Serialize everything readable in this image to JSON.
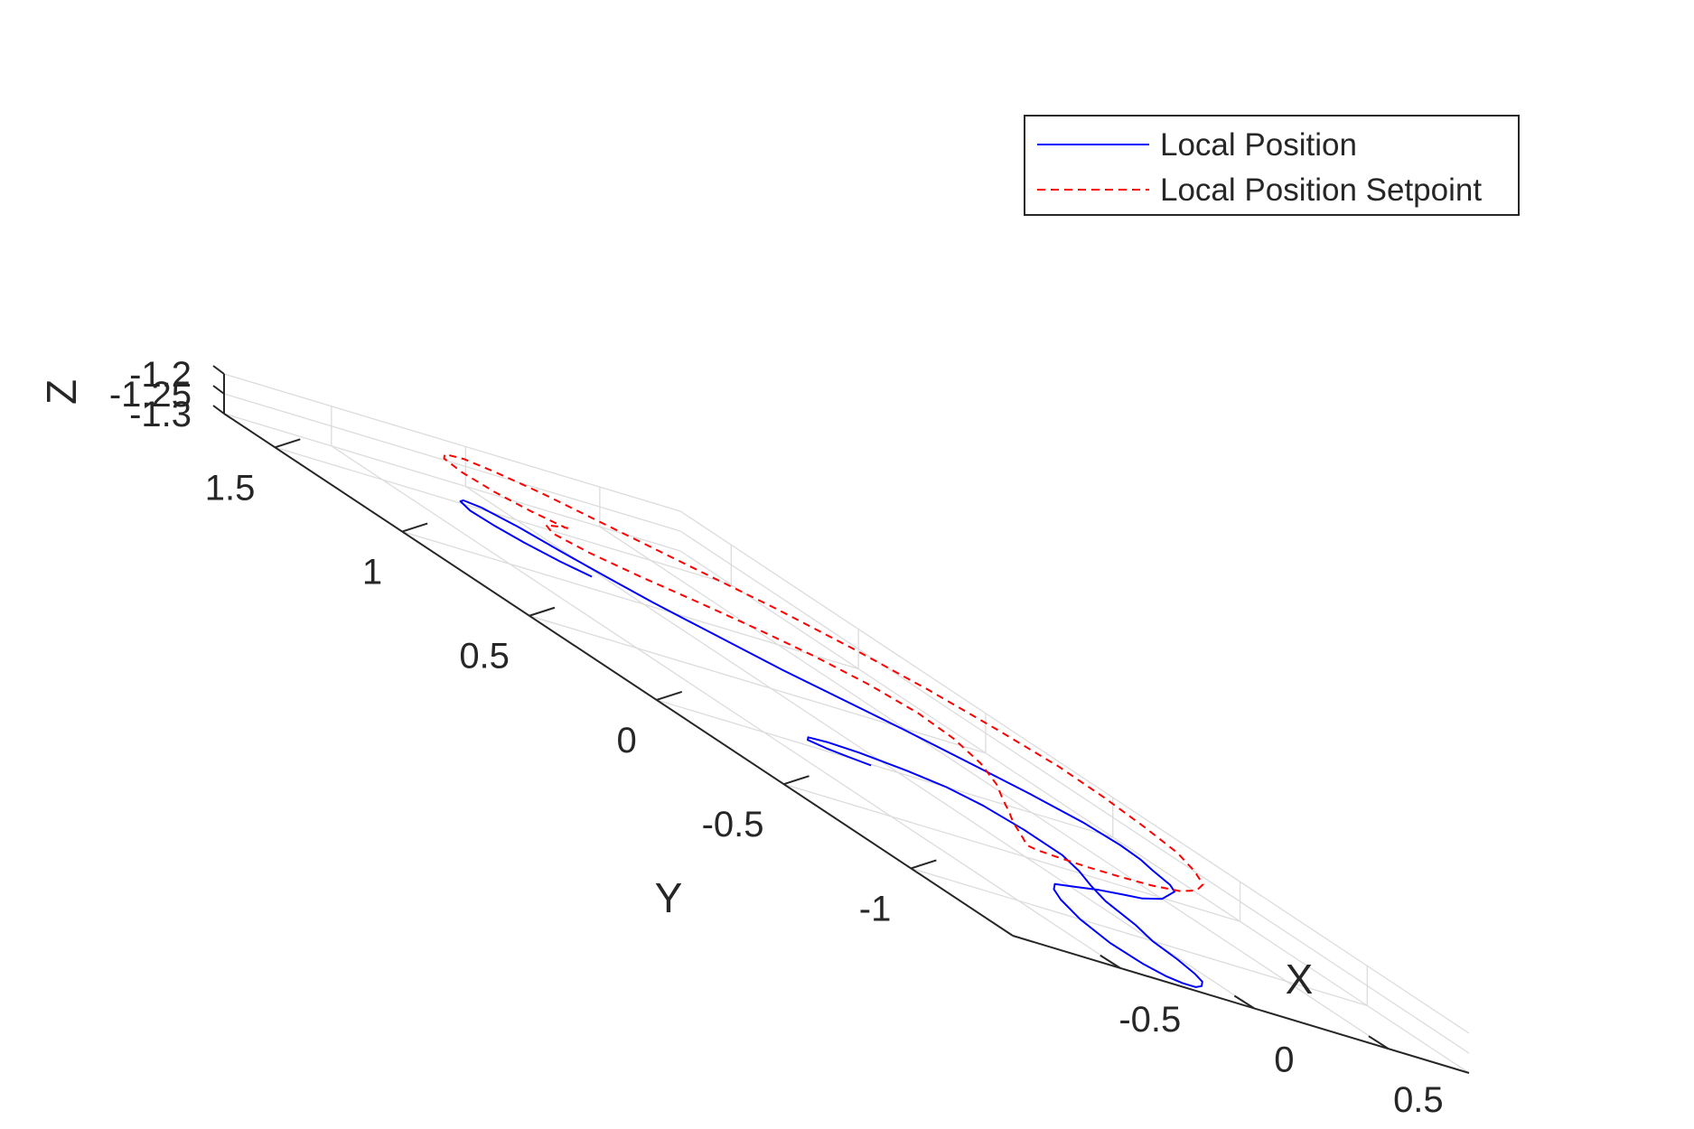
{
  "chart_data": {
    "type": "line3d",
    "title": "",
    "xlabel": "X",
    "ylabel": "Y",
    "zlabel": "Z",
    "xlim": [
      -0.9,
      0.8
    ],
    "ylim": [
      -1.4,
      1.7
    ],
    "zlim": [
      -1.3,
      -1.2
    ],
    "xticks": [
      -0.5,
      0,
      0.5
    ],
    "xtick_labels": [
      "-0.5",
      "0",
      "0.5"
    ],
    "yticks": [
      -1,
      -0.5,
      0,
      0.5,
      1,
      1.5
    ],
    "ytick_labels": [
      "-1",
      "-0.5",
      "0",
      "0.5",
      "1",
      "1.5"
    ],
    "zticks": [
      -1.3,
      -1.25,
      -1.2
    ],
    "ztick_labels": [
      "-1.3",
      "-1.25",
      "-1.2"
    ],
    "grid": true,
    "legend_position": "top-right",
    "series": [
      {
        "name": "Local Position",
        "color": "#0000ff",
        "style": "solid",
        "z": -1.3,
        "x": [
          -0.07,
          -0.13,
          -0.18,
          -0.21,
          -0.22,
          -0.19,
          -0.16,
          -0.11,
          -0.06,
          -0.02,
          0.03,
          0.08,
          0.14,
          0.27,
          0.48,
          0.6,
          0.68,
          0.75,
          0.77,
          0.76,
          0.73,
          0.7,
          0.66,
          0.58,
          0.5,
          0.37,
          0.28,
          0.16,
          0.04,
          -0.08,
          -0.14,
          -0.2,
          -0.27,
          -0.31,
          -0.3,
          -0.27,
          -0.23,
          -0.18,
          -0.13,
          -0.08,
          -0.05,
          -0.02,
          0.0,
          0.05,
          0.09,
          0.15,
          0.22,
          0.27,
          0.27,
          0.24,
          0.18,
          0.08,
          -0.06,
          -0.17,
          -0.25,
          -0.28,
          -0.24,
          -0.18,
          -0.11
        ],
        "y": [
          1.13,
          1.19,
          1.28,
          1.37,
          1.45,
          1.52,
          1.54,
          1.52,
          1.43,
          1.3,
          1.17,
          1.05,
          0.95,
          0.74,
          0.49,
          0.32,
          0.2,
          0.06,
          -0.06,
          -0.15,
          -0.23,
          -0.33,
          -0.39,
          -0.45,
          -0.51,
          -0.57,
          -0.59,
          -0.62,
          -0.66,
          -0.7,
          -0.76,
          -0.85,
          -1.0,
          -1.16,
          -1.28,
          -1.34,
          -1.36,
          -1.36,
          -1.33,
          -1.28,
          -1.22,
          -1.12,
          -1.0,
          -0.88,
          -0.72,
          -0.6,
          -0.48,
          -0.36,
          -0.21,
          -0.08,
          0.0,
          0.05,
          0.09,
          0.1,
          0.09,
          0.06,
          0.03,
          0.01,
          -0.01
        ]
      },
      {
        "name": "Local Position Setpoint",
        "color": "#ff0000",
        "style": "dashed",
        "z": -1.2,
        "x": [
          -0.15,
          -0.22,
          -0.27,
          -0.29,
          -0.27,
          -0.22,
          -0.14,
          -0.06,
          0.04,
          0.15,
          0.29,
          0.45,
          0.56,
          0.65,
          0.71,
          0.75,
          0.74,
          0.71,
          0.67,
          0.6,
          0.52,
          0.41,
          0.29,
          0.16,
          0.03,
          -0.1,
          -0.2,
          -0.26,
          -0.28,
          -0.25,
          -0.2,
          -0.14,
          -0.06,
          0.03,
          0.14,
          0.25,
          0.32,
          0.34,
          0.3,
          0.22,
          0.11,
          -0.02,
          -0.15,
          -0.25,
          -0.3,
          -0.26,
          -0.14
        ],
        "y": [
          1.14,
          1.21,
          1.3,
          1.41,
          1.5,
          1.55,
          1.56,
          1.52,
          1.44,
          1.31,
          1.14,
          0.95,
          0.77,
          0.57,
          0.36,
          0.16,
          -0.03,
          -0.22,
          -0.39,
          -0.53,
          -0.65,
          -0.74,
          -0.8,
          -0.83,
          -0.84,
          -0.84,
          -0.83,
          -0.82,
          -0.8,
          -0.76,
          -0.69,
          -0.6,
          -0.5,
          -0.38,
          -0.24,
          -0.06,
          0.12,
          0.28,
          0.43,
          0.56,
          0.67,
          0.77,
          0.86,
          0.95,
          1.04,
          1.11,
          1.15
        ]
      }
    ]
  }
}
